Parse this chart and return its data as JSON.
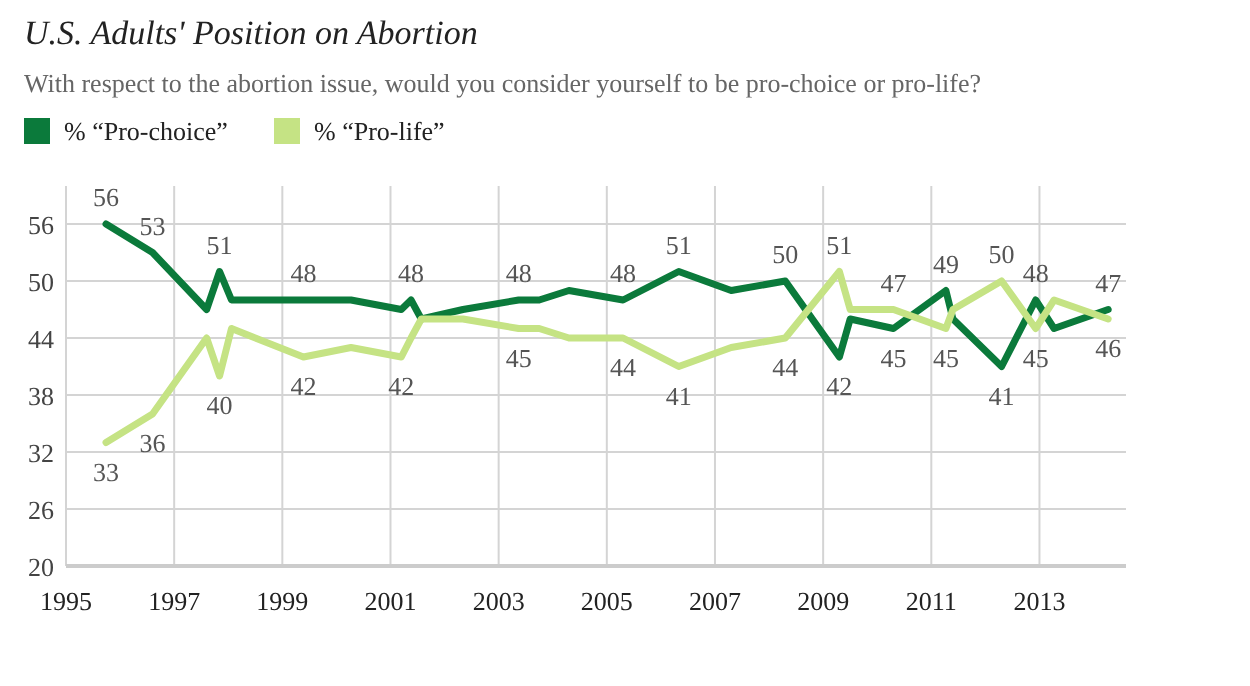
{
  "chart_data": {
    "type": "line",
    "title": "U.S. Adults' Position on Abortion",
    "subtitle": "With respect to the abortion issue, would you consider yourself to be pro-choice or pro-life?",
    "x": [
      1995.74,
      1996.6,
      1997.6,
      1997.84,
      1998.06,
      1999.39,
      2000.27,
      2001.2,
      2001.38,
      2001.57,
      2002.34,
      2003.37,
      2003.75,
      2004.3,
      2005.3,
      2006.33,
      2007.3,
      2008.3,
      2009.3,
      2009.5,
      2010.3,
      2011.27,
      2011.4,
      2012.3,
      2012.93,
      2013.27,
      2014.27
    ],
    "series": [
      {
        "name": "% “Pro-choice”",
        "color": "#0b7a3b",
        "values": [
          56,
          53,
          47,
          51,
          48,
          48,
          48,
          47,
          48,
          46,
          47,
          48,
          48,
          49,
          48,
          51,
          49,
          50,
          42,
          46,
          45,
          49,
          46,
          41,
          48,
          45,
          47
        ],
        "value_labels": [
          "56",
          "53",
          null,
          "51",
          null,
          "48",
          null,
          null,
          "48",
          null,
          null,
          "48",
          null,
          null,
          "48",
          "51",
          null,
          "50",
          "42",
          null,
          "45",
          "49",
          null,
          "41",
          "48",
          null,
          "47"
        ]
      },
      {
        "name": "% “Pro-life”",
        "color": "#c5e384",
        "values": [
          33,
          36,
          44,
          40,
          45,
          42,
          43,
          42,
          44,
          46,
          46,
          45,
          45,
          44,
          44,
          41,
          43,
          44,
          51,
          47,
          47,
          45,
          47,
          50,
          45,
          48,
          46
        ],
        "value_labels": [
          "33",
          "36",
          null,
          "40",
          null,
          "42",
          null,
          "42",
          null,
          null,
          null,
          "45",
          null,
          null,
          "44",
          "41",
          null,
          "44",
          "51",
          null,
          "47",
          "45",
          null,
          "50",
          "45",
          null,
          "46"
        ]
      }
    ],
    "xlim": [
      1995,
      2014.6
    ],
    "xticks": [
      1995,
      1997,
      1999,
      2001,
      2003,
      2005,
      2007,
      2009,
      2011,
      2013
    ],
    "ylim": [
      20,
      60
    ],
    "yticks": [
      20,
      26,
      32,
      38,
      44,
      50,
      56
    ],
    "grid": true,
    "legend": "top left",
    "marker": "none",
    "line_style": "solid"
  }
}
